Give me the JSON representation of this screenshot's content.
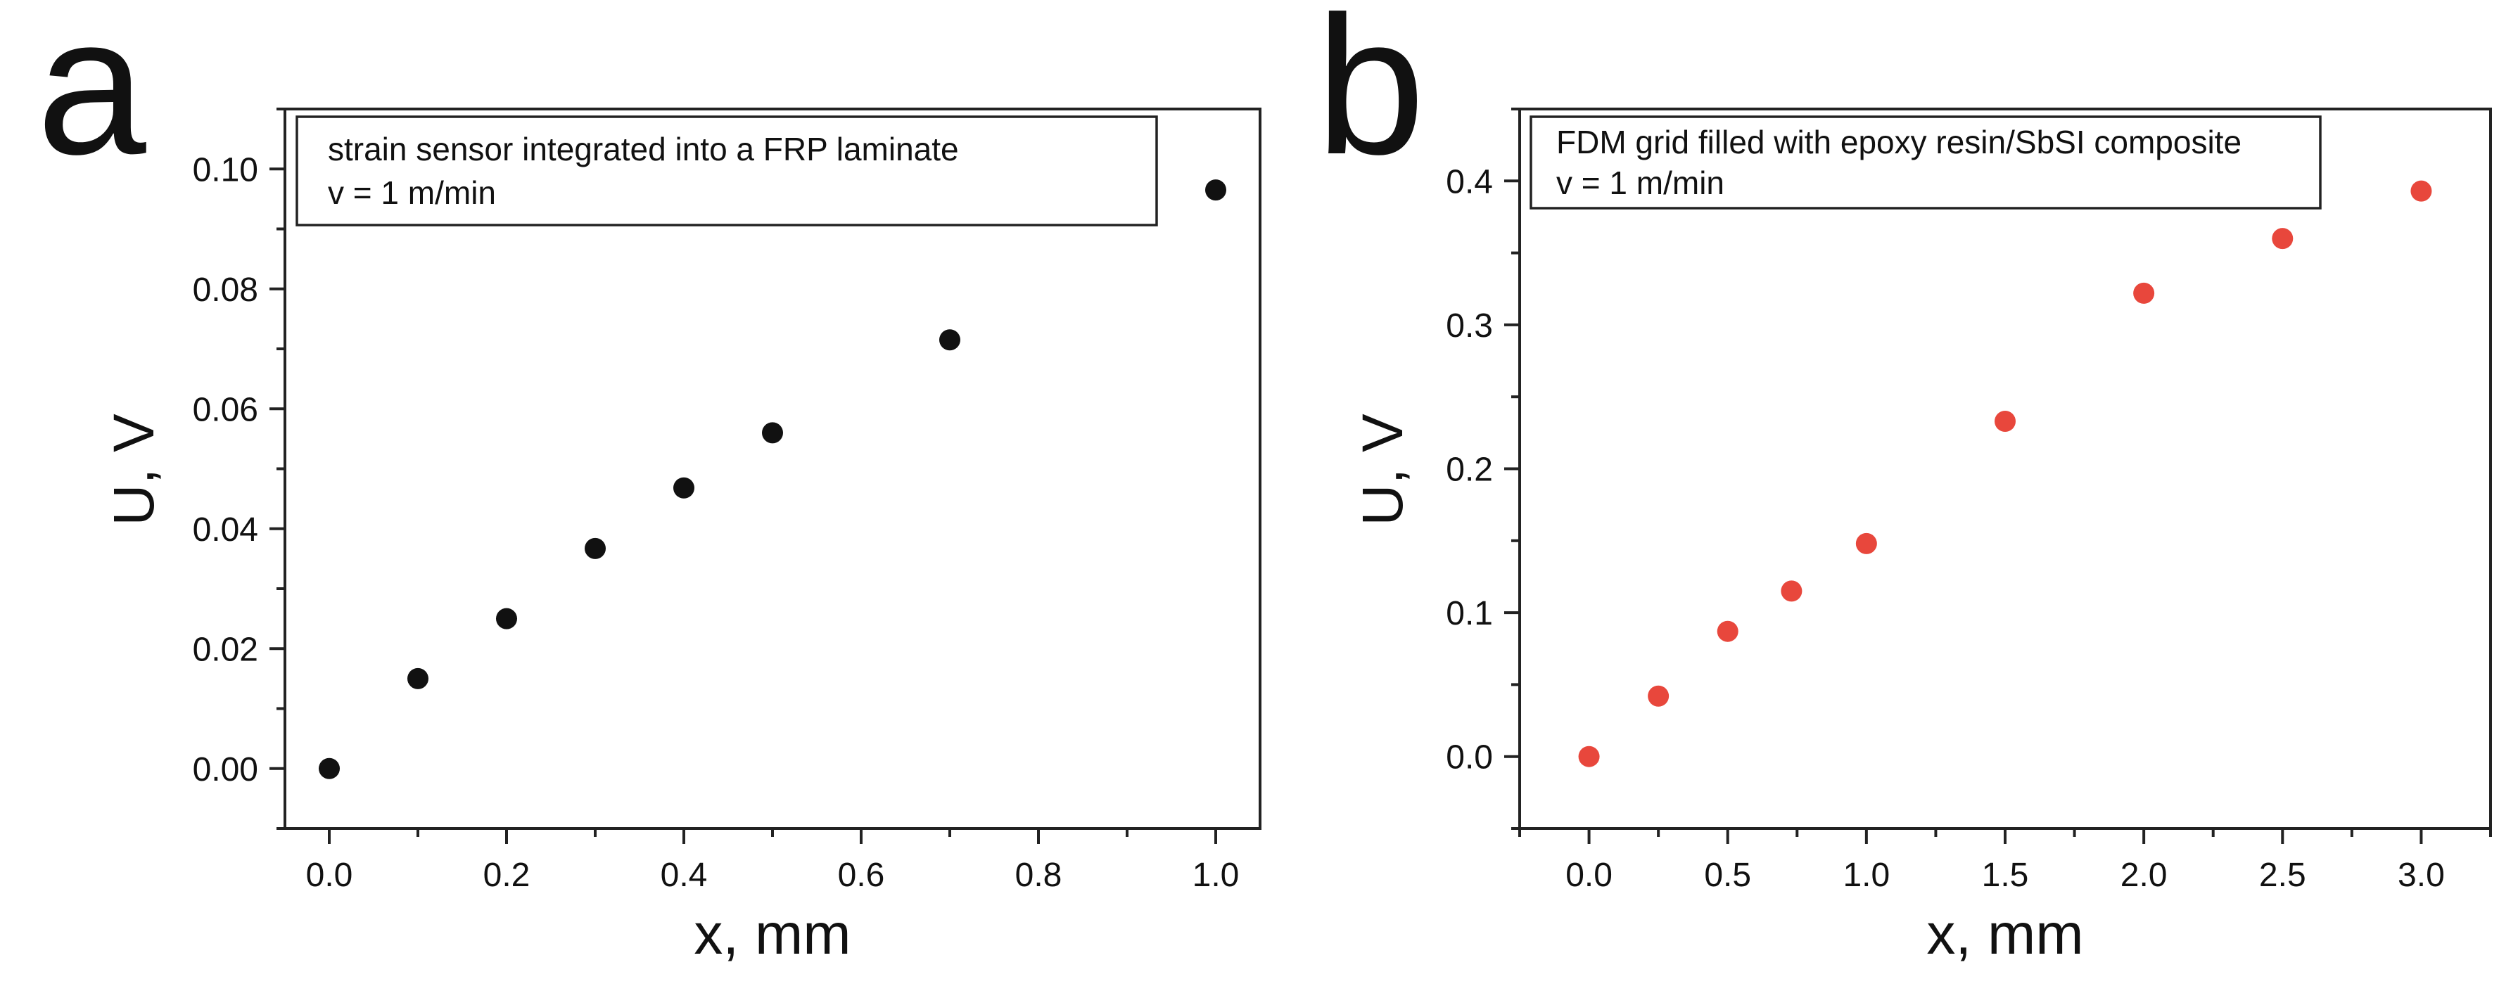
{
  "chart_data": [
    {
      "type": "scatter",
      "panel_label": "a",
      "title": "",
      "xlabel": "x, mm",
      "ylabel": "U, V",
      "xlim": [
        -0.05,
        1.05
      ],
      "ylim": [
        -0.01,
        0.11
      ],
      "x_ticks": [
        "0.0",
        "0.2",
        "0.4",
        "0.6",
        "0.8",
        "1.0"
      ],
      "y_ticks": [
        "0.00",
        "0.02",
        "0.04",
        "0.06",
        "0.08",
        "0.10"
      ],
      "legend": [
        "strain sensor integrated into a FRP laminate",
        "v = 1 m/min"
      ],
      "legend_position": "top-left",
      "marker_color": "#111111",
      "series": [
        {
          "name": "strain sensor integrated into a FRP laminate",
          "x": [
            0.0,
            0.1,
            0.2,
            0.3,
            0.4,
            0.5,
            0.7,
            1.0
          ],
          "y": [
            0.0,
            0.015,
            0.025,
            0.0367,
            0.0468,
            0.056,
            0.0715,
            0.0965
          ]
        }
      ]
    },
    {
      "type": "scatter",
      "panel_label": "b",
      "title": "",
      "xlabel": "x, mm",
      "ylabel": "U, V",
      "xlim": [
        -0.25,
        3.25
      ],
      "ylim": [
        -0.05,
        0.45
      ],
      "x_ticks": [
        "0.0",
        "0.5",
        "1.0",
        "1.5",
        "2.0",
        "2.5",
        "3.0"
      ],
      "y_ticks": [
        "0.0",
        "0.1",
        "0.2",
        "0.3",
        "0.4"
      ],
      "legend": [
        "FDM grid filled with epoxy resin/SbSI composite",
        "v = 1 m/min"
      ],
      "legend_position": "top-left",
      "marker_color": "#e8473c",
      "series": [
        {
          "name": "FDM grid filled with epoxy resin/SbSI composite",
          "x": [
            0.0,
            0.25,
            0.5,
            0.73,
            1.0,
            1.5,
            2.0,
            2.5,
            3.0
          ],
          "y": [
            0.0,
            0.042,
            0.087,
            0.115,
            0.148,
            0.233,
            0.322,
            0.36,
            0.393
          ]
        }
      ]
    }
  ]
}
